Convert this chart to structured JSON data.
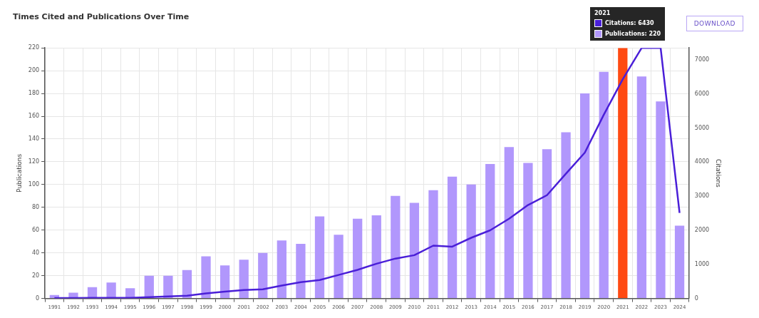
{
  "chart_data": {
    "type": "bar",
    "title": "Times Cited and Publications Over Time",
    "ylabel": "Publications",
    "y2label": "Citations",
    "categories": [
      "1991",
      "1992",
      "1993",
      "1994",
      "1995",
      "1996",
      "1997",
      "1998",
      "1999",
      "2000",
      "2001",
      "2002",
      "2003",
      "2004",
      "2005",
      "2006",
      "2007",
      "2008",
      "2009",
      "2010",
      "2011",
      "2012",
      "2013",
      "2014",
      "2015",
      "2016",
      "2017",
      "2018",
      "2019",
      "2020",
      "2021",
      "2022",
      "2023",
      "2024"
    ],
    "series": [
      {
        "type": "line",
        "axis": "y2",
        "color": "#4a1fd8",
        "values": [
          10,
          10,
          20,
          20,
          20,
          40,
          60,
          80,
          150,
          200,
          250,
          270,
          380,
          480,
          540,
          690,
          840,
          1020,
          1170,
          1270,
          1550,
          1520,
          1780,
          2000,
          2340,
          2740,
          3030,
          3660,
          4280,
          5390,
          6430,
          7350,
          7350,
          2510
        ]
      },
      {
        "color": "#b197fc",
        "colors": [
          "#b197fc",
          "#b197fc",
          "#b197fc",
          "#b197fc",
          "#b197fc",
          "#b197fc",
          "#b197fc",
          "#b197fc",
          "#b197fc",
          "#b197fc",
          "#b197fc",
          "#b197fc",
          "#b197fc",
          "#b197fc",
          "#b197fc",
          "#b197fc",
          "#b197fc",
          "#b197fc",
          "#b197fc",
          "#b197fc",
          "#b197fc",
          "#b197fc",
          "#b197fc",
          "#b197fc",
          "#b197fc",
          "#b197fc",
          "#b197fc",
          "#b197fc",
          "#b197fc",
          "#b197fc",
          "#ff4a12",
          "#b197fc",
          "#b197fc",
          "#b197fc"
        ],
        "values": [
          3,
          5,
          10,
          14,
          9,
          20,
          20,
          25,
          37,
          29,
          34,
          40,
          51,
          48,
          72,
          56,
          70,
          73,
          90,
          84,
          95,
          107,
          100,
          118,
          133,
          119,
          131,
          146,
          180,
          199,
          220,
          195,
          173,
          64
        ]
      }
    ],
    "ylim": [
      0,
      220
    ],
    "yticks": [
      0,
      20,
      40,
      60,
      80,
      100,
      120,
      140,
      160,
      180,
      200,
      220
    ],
    "y2lim": [
      0,
      7350
    ],
    "y2ticks": [
      0,
      1000,
      2000,
      3000,
      4000,
      5000,
      6000,
      7000
    ],
    "grid": true,
    "annotations": [
      "2021",
      "Citations: 6430",
      "Publications: 220",
      "DOWNLOAD"
    ]
  }
}
